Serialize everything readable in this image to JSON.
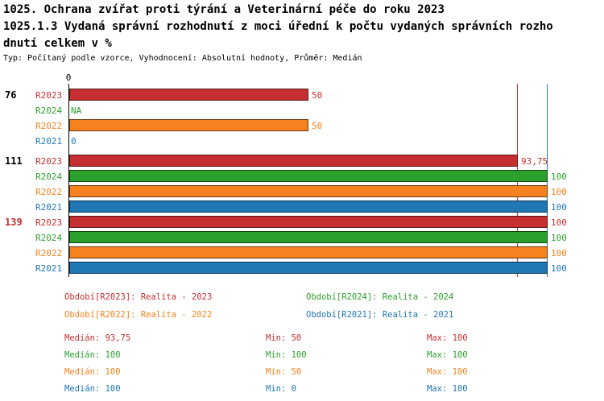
{
  "header": {
    "title_lines": [
      "1025. Ochrana zvířat proti týrání a Veterinární péče do roku 2023",
      "1025.1.3 Vydaná správní rozhodnutí z moci úřední k počtu vydaných správních rozho",
      "dnutí celkem v %"
    ],
    "subtitle": "Typ: Počítaný podle vzorce, Vyhodnocení: Absolutní hodnoty, Průměr: Medián"
  },
  "chart_data": {
    "type": "bar",
    "orientation": "horizontal",
    "x_axis": {
      "zero_label": "0",
      "min": 0,
      "max": 100
    },
    "series_colors": {
      "R2023": "#c62f2f",
      "R2024": "#2ca02c",
      "R2022": "#f5821f",
      "R2021": "#1f77b4"
    },
    "reference_lines": [
      {
        "value": 93.75,
        "color": "#c62f2f"
      },
      {
        "value": 100,
        "color": "#1f77b4"
      }
    ],
    "groups": [
      {
        "label": "76",
        "label_color": "#000000",
        "bars": [
          {
            "series": "R2023",
            "value": 50,
            "value_label": "50"
          },
          {
            "series": "R2024",
            "value": null,
            "value_label": "NA"
          },
          {
            "series": "R2022",
            "value": 50,
            "value_label": "50"
          },
          {
            "series": "R2021",
            "value": 0,
            "value_label": "0"
          }
        ]
      },
      {
        "label": "111",
        "label_color": "#000000",
        "bars": [
          {
            "series": "R2023",
            "value": 93.75,
            "value_label": "93,75"
          },
          {
            "series": "R2024",
            "value": 100,
            "value_label": "100"
          },
          {
            "series": "R2022",
            "value": 100,
            "value_label": "100"
          },
          {
            "series": "R2021",
            "value": 100,
            "value_label": "100"
          }
        ]
      },
      {
        "label": "139",
        "label_color": "#c62f2f",
        "bars": [
          {
            "series": "R2023",
            "value": 100,
            "value_label": "100"
          },
          {
            "series": "R2024",
            "value": 100,
            "value_label": "100"
          },
          {
            "series": "R2022",
            "value": 100,
            "value_label": "100"
          },
          {
            "series": "R2021",
            "value": 100,
            "value_label": "100"
          }
        ]
      }
    ],
    "legend": [
      {
        "text": "Období[R2023]: Realita - 2023",
        "color": "#c62f2f"
      },
      {
        "text": "Období[R2024]: Realita - 2024",
        "color": "#2ca02c"
      },
      {
        "text": "Období[R2022]: Realita - 2022",
        "color": "#f5821f"
      },
      {
        "text": "Období[R2021]: Realita - 2021",
        "color": "#1f77b4"
      }
    ],
    "stats": [
      {
        "median": "Medián: 93,75",
        "min": "Min: 50",
        "max": "Max: 100",
        "color": "#c62f2f"
      },
      {
        "median": "Medián: 100",
        "min": "Min: 100",
        "max": "Max: 100",
        "color": "#2ca02c"
      },
      {
        "median": "Medián: 100",
        "min": "Min: 50",
        "max": "Max: 100",
        "color": "#f5821f"
      },
      {
        "median": "Medián: 100",
        "min": "Min: 0",
        "max": "Max: 100",
        "color": "#1f77b4"
      }
    ]
  }
}
